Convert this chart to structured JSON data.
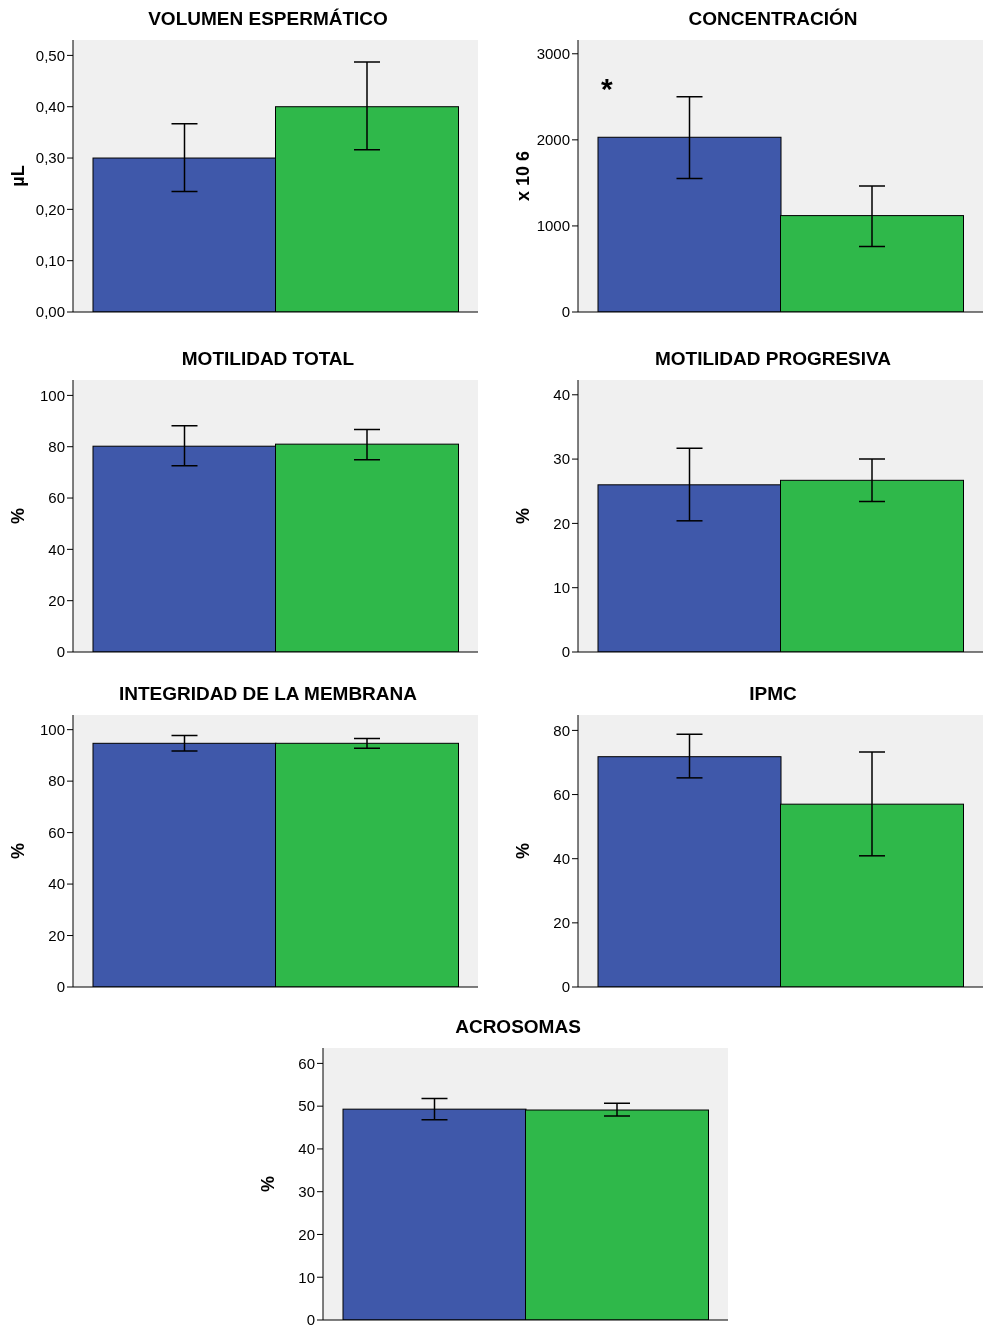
{
  "chart_data": [
    {
      "type": "bar",
      "title": "VOLUMEN ESPERMÁTICO",
      "ylabel": "µL",
      "categories": [
        null,
        null
      ],
      "values": [
        0.3,
        0.4
      ],
      "errors": [
        [
          0.235,
          0.367
        ],
        [
          0.316,
          0.487
        ]
      ],
      "colors": [
        "#3f58aa",
        "#2fb84a"
      ],
      "ylim": [
        0,
        0.53
      ],
      "yticks": [
        {
          "value": 0,
          "label": "0,00"
        },
        {
          "value": 0.1,
          "label": "0,10"
        },
        {
          "value": 0.2,
          "label": "0,20"
        },
        {
          "value": 0.3,
          "label": "0,30"
        },
        {
          "value": 0.4,
          "label": "0,40"
        },
        {
          "value": 0.5,
          "label": "0,50"
        }
      ],
      "grid": false,
      "legend": false
    },
    {
      "type": "bar",
      "title": "CONCENTRACIÓN",
      "ylabel": "x 10 6",
      "categories": [
        null,
        null
      ],
      "values": [
        2030,
        1120
      ],
      "errors": [
        [
          1550,
          2500
        ],
        [
          760,
          1465
        ]
      ],
      "colors": [
        "#3f58aa",
        "#2fb84a"
      ],
      "ylim": [
        0,
        3160
      ],
      "yticks": [
        0,
        1000,
        2000,
        3000
      ],
      "grid": false,
      "legend": false,
      "annotations": [
        "*"
      ]
    },
    {
      "type": "bar",
      "title": "MOTILIDAD TOTAL",
      "ylabel": "%",
      "categories": [
        null,
        null
      ],
      "values": [
        80.2,
        81
      ],
      "errors": [
        [
          72.6,
          88.2
        ],
        [
          74.9,
          86.7
        ]
      ],
      "colors": [
        "#3f58aa",
        "#2fb84a"
      ],
      "ylim": [
        0,
        106
      ],
      "yticks": [
        0,
        20,
        40,
        60,
        80,
        100
      ],
      "grid": false,
      "legend": false
    },
    {
      "type": "bar",
      "title": "MOTILIDAD PROGRESIVA",
      "ylabel": "%",
      "categories": [
        null,
        null
      ],
      "values": [
        26.0,
        26.7
      ],
      "errors": [
        [
          20.4,
          31.7
        ],
        [
          23.4,
          30.0
        ]
      ],
      "colors": [
        "#3f58aa",
        "#2fb84a"
      ],
      "ylim": [
        0,
        42.3
      ],
      "yticks": [
        0,
        10,
        20,
        30,
        40
      ],
      "grid": false,
      "legend": false
    },
    {
      "type": "bar",
      "title": "INTEGRIDAD DE LA MEMBRANA",
      "ylabel": "%",
      "categories": [
        null,
        null
      ],
      "values": [
        94.7,
        94.7
      ],
      "errors": [
        [
          91.7,
          97.7
        ],
        [
          92.8,
          96.6
        ]
      ],
      "colors": [
        "#3f58aa",
        "#2fb84a"
      ],
      "ylim": [
        0,
        105.7
      ],
      "yticks": [
        0,
        20,
        40,
        60,
        80,
        100
      ],
      "grid": false,
      "legend": false
    },
    {
      "type": "bar",
      "title": "IPMC",
      "ylabel": "%",
      "categories": [
        null,
        null
      ],
      "values": [
        71.8,
        57
      ],
      "errors": [
        [
          65.2,
          78.8
        ],
        [
          40.9,
          73.3
        ]
      ],
      "colors": [
        "#3f58aa",
        "#2fb84a"
      ],
      "ylim": [
        0,
        84.8
      ],
      "yticks": [
        0,
        20,
        40,
        60,
        80
      ],
      "grid": false,
      "legend": false
    },
    {
      "type": "bar",
      "title": "ACROSOMAS",
      "ylabel": "%",
      "categories": [
        null,
        null
      ],
      "values": [
        49.3,
        49.1
      ],
      "errors": [
        [
          46.8,
          51.8
        ],
        [
          47.7,
          50.7
        ]
      ],
      "colors": [
        "#3f58aa",
        "#2fb84a"
      ],
      "ylim": [
        0,
        63.6
      ],
      "yticks": [
        0,
        10,
        20,
        30,
        40,
        50,
        60
      ],
      "grid": false,
      "legend": false
    }
  ]
}
